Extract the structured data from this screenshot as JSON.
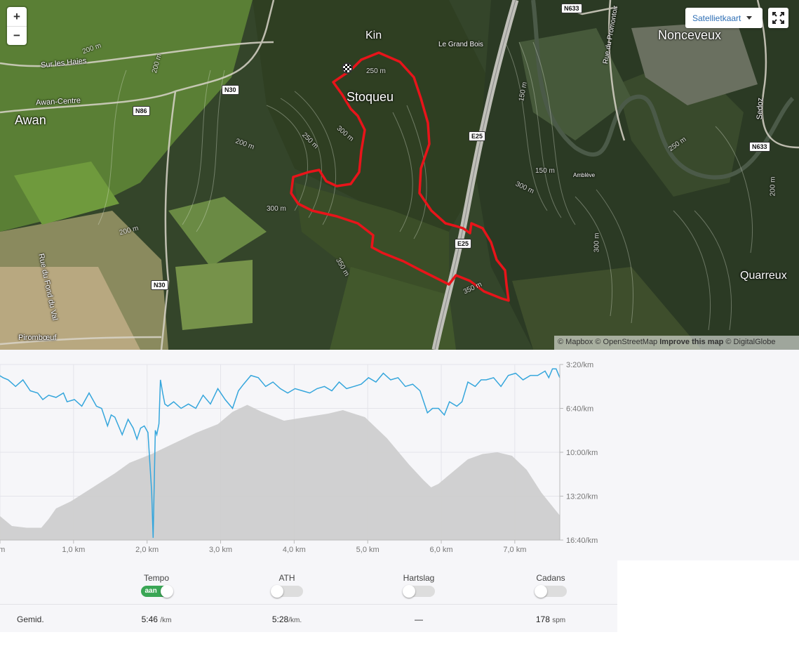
{
  "map": {
    "place_labels": [
      {
        "name": "Kin",
        "size": "large"
      },
      {
        "name": "Le Grand Bois",
        "size": "small"
      },
      {
        "name": "Nonceveux",
        "size": "large"
      },
      {
        "name": "Stoqueu",
        "size": "large"
      },
      {
        "name": "Awan",
        "size": "large"
      },
      {
        "name": "Awan-Centre",
        "size": "small"
      },
      {
        "name": "Sur les Haies",
        "size": "small"
      },
      {
        "name": "Quarreux",
        "size": "large"
      },
      {
        "name": "Rue du Fond du Val",
        "size": "small"
      },
      {
        "name": "Pirombœuf",
        "size": "small"
      },
      {
        "name": "Rue du Promontoir",
        "size": "small"
      },
      {
        "name": "Sedoz",
        "size": "small"
      },
      {
        "name": "Amblève",
        "size": "small"
      }
    ],
    "road_labels": [
      "N633",
      "N30",
      "N86",
      "E25",
      "E25",
      "N633",
      "N30"
    ],
    "contour_labels": [
      "200 m",
      "250 m",
      "300 m",
      "350 m",
      "150 m",
      "250 m",
      "200 m",
      "300 m",
      "300 m",
      "350 m",
      "200 m",
      "200 m",
      "150 m",
      "250 m",
      "300 m",
      "200 m"
    ],
    "route_color": "#e8141a",
    "layer_selector": "Satellietkaart",
    "zoom_in": "+",
    "zoom_out": "−",
    "attribution": {
      "mapbox": "© Mapbox",
      "osm": "© OpenStreetMap",
      "improve": "Improve this map",
      "digitalglobe": "© DigitalGlobe"
    }
  },
  "chart_data": {
    "type": "line",
    "xlabel": "",
    "ylabel": "",
    "x_ticks": [
      "km",
      "1,0 km",
      "2,0 km",
      "3,0 km",
      "4,0 km",
      "5,0 km",
      "6,0 km",
      "7,0 km"
    ],
    "x_range_km": [
      0,
      7.65
    ],
    "y_ticks": [
      "3:20/km",
      "6:40/km",
      "10:00/km",
      "13:20/km",
      "16:40/km"
    ],
    "y_range_sec_per_km": [
      200,
      1000
    ],
    "series": [
      {
        "name": "Tempo",
        "color": "#35a6dc",
        "x_km": [
          0.0,
          0.03,
          0.08,
          0.15,
          0.25,
          0.35,
          0.45,
          0.55,
          0.62,
          0.7,
          0.8,
          0.9,
          0.95,
          1.05,
          1.15,
          1.25,
          1.35,
          1.42,
          1.5,
          1.55,
          1.6,
          1.7,
          1.78,
          1.85,
          1.9,
          1.95,
          2.0,
          2.05,
          2.1,
          2.12,
          2.15,
          2.17,
          2.2,
          2.22,
          2.25,
          2.28,
          2.32,
          2.4,
          2.5,
          2.6,
          2.7,
          2.8,
          2.9,
          3.0,
          3.1,
          3.2,
          3.28,
          3.35,
          3.45,
          3.55,
          3.65,
          3.75,
          3.85,
          3.95,
          4.05,
          4.15,
          4.25,
          4.35,
          4.45,
          4.55,
          4.65,
          4.75,
          4.85,
          4.95,
          5.05,
          5.15,
          5.25,
          5.35,
          5.45,
          5.55,
          5.65,
          5.75,
          5.85,
          5.92,
          6.0,
          6.08,
          6.15,
          6.25,
          6.32,
          6.4,
          6.5,
          6.58,
          6.65,
          6.75,
          6.85,
          6.95,
          7.05,
          7.15,
          7.25,
          7.35,
          7.45,
          7.5,
          7.55,
          7.6,
          7.65
        ],
        "y_sec_km": [
          410,
          250,
          260,
          270,
          300,
          270,
          320,
          330,
          360,
          340,
          350,
          330,
          370,
          360,
          390,
          330,
          390,
          400,
          480,
          430,
          440,
          520,
          450,
          490,
          540,
          490,
          480,
          510,
          780,
          990,
          500,
          520,
          470,
          270,
          330,
          380,
          390,
          370,
          400,
          380,
          400,
          340,
          380,
          310,
          360,
          400,
          320,
          290,
          250,
          260,
          300,
          280,
          310,
          330,
          310,
          320,
          330,
          310,
          300,
          320,
          280,
          310,
          300,
          290,
          260,
          280,
          240,
          270,
          260,
          300,
          290,
          320,
          420,
          400,
          400,
          430,
          370,
          390,
          370,
          280,
          300,
          270,
          270,
          260,
          300,
          250,
          240,
          270,
          250,
          250,
          230,
          260,
          220,
          220,
          260
        ],
        "y_unit": "sec/km"
      },
      {
        "name": "Hoogte",
        "color": "#cccccc",
        "type": "area",
        "x_km": [
          0.0,
          0.2,
          0.4,
          0.6,
          0.7,
          0.8,
          1.0,
          1.3,
          1.6,
          1.8,
          2.1,
          2.4,
          2.7,
          3.0,
          3.2,
          3.4,
          3.6,
          3.9,
          4.2,
          4.5,
          4.7,
          5.0,
          5.3,
          5.6,
          5.8,
          5.9,
          6.0,
          6.2,
          6.4,
          6.6,
          6.8,
          7.0,
          7.2,
          7.4,
          7.65
        ],
        "y_elev_rel": [
          0.15,
          0.08,
          0.07,
          0.07,
          0.12,
          0.18,
          0.22,
          0.3,
          0.38,
          0.44,
          0.49,
          0.55,
          0.61,
          0.66,
          0.73,
          0.77,
          0.73,
          0.68,
          0.7,
          0.72,
          0.74,
          0.7,
          0.58,
          0.43,
          0.34,
          0.3,
          0.32,
          0.39,
          0.46,
          0.49,
          0.5,
          0.48,
          0.4,
          0.27,
          0.14
        ]
      }
    ],
    "grid": true
  },
  "controls": {
    "columns": [
      {
        "title": "Tempo",
        "state": "on",
        "on_text": "aan"
      },
      {
        "title": "ATH",
        "state": "off"
      },
      {
        "title": "Hartslag",
        "state": "off"
      },
      {
        "title": "Cadans",
        "state": "off"
      }
    ],
    "average_label": "Gemid.",
    "averages": [
      {
        "value": "5:46",
        "unit": "/km"
      },
      {
        "value": "5:28",
        "unit": "/km."
      },
      {
        "value": "—",
        "unit": ""
      },
      {
        "value": "178",
        "unit": "spm"
      }
    ]
  }
}
